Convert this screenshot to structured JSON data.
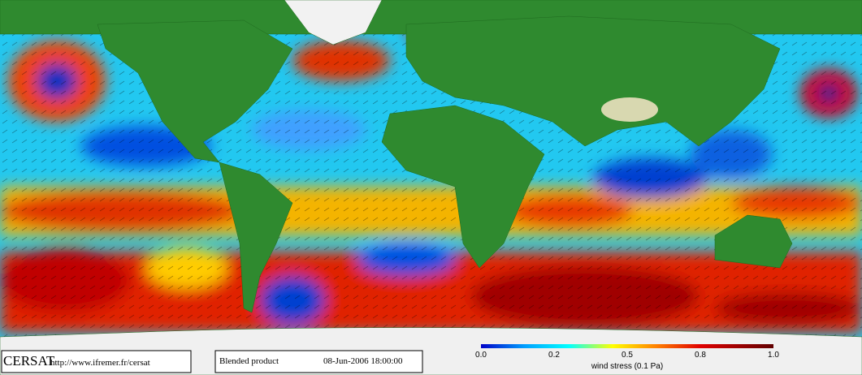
{
  "footer": {
    "logo": "CERSAT",
    "url": "http://www.ifremer.fr/cersat",
    "product": "Blended product",
    "datetime": "08-Jun-2006 18:00:00"
  },
  "colorbar": {
    "ticks": [
      "0.0",
      "0.2",
      "0.5",
      "0.8",
      "1.0"
    ],
    "label": "wind stress (0.1 Pa)"
  }
}
